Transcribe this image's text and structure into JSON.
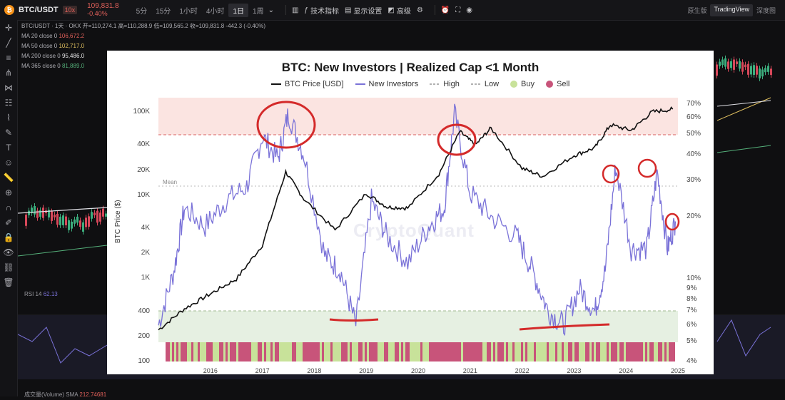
{
  "toolbar": {
    "symbol": "BTC/USDT",
    "leverage": "10x",
    "price": "109,831.8",
    "change": "-0.40%",
    "timeframes": [
      "5分",
      "15分",
      "1小时",
      "4小时",
      "1日",
      "1周"
    ],
    "active_timeframe": "1日",
    "indicators_label": "技术指标",
    "display_label": "显示设置",
    "advanced_label": "高级",
    "views": [
      "原生版",
      "TradingView",
      "深度图"
    ],
    "active_view": "TradingView"
  },
  "legend": {
    "header": "BTC/USDT · 1天 · OKX",
    "ohlc": "开=110,274.1 高=110,288.9 低=109,565.2 收=109,831.8 -442.3 (-0.40%)",
    "ma20_label": "MA 20 close 0",
    "ma20_val": "106,672.2",
    "ma50_label": "MA 50 close 0",
    "ma50_val": "102,717.0",
    "ma200_label": "MA 200 close 0",
    "ma200_val": "95,486.0",
    "ma365_label": "MA 365 close 0",
    "ma365_val": "81,889.0"
  },
  "rsi": {
    "label": "RSI 14",
    "value": "62.13"
  },
  "volume": {
    "label": "成交量(Volume) SMA",
    "value": "212.74681"
  },
  "panel": {
    "title": "BTC: New Investors | Realized Cap <1 Month",
    "legend": [
      {
        "label": "BTC Price [USD]",
        "kind": "line",
        "color": "#111111"
      },
      {
        "label": "New Investors",
        "kind": "line",
        "color": "#7a72d8"
      },
      {
        "label": "High",
        "kind": "dash",
        "color": "#999999"
      },
      {
        "label": "Low",
        "kind": "dash",
        "color": "#999999"
      },
      {
        "label": "Buy",
        "kind": "dot",
        "color": "#c8e29a"
      },
      {
        "label": "Sell",
        "kind": "dot",
        "color": "#c8547a"
      }
    ],
    "ylabel": "BTC Price ($)",
    "mean_label": "Mean",
    "watermark": "CryptoQuant"
  },
  "chart_data": {
    "type": "line",
    "title": "BTC: New Investors | Realized Cap <1 Month",
    "ylabel": "BTC Price ($)",
    "y_left_ticks": [
      "100K",
      "40K",
      "20K",
      "10K",
      "4K",
      "2K",
      "1K",
      "400",
      "200",
      "100"
    ],
    "y_right_ticks": [
      "70%",
      "60%",
      "50%",
      "40%",
      "30%",
      "20%",
      "10%",
      "9%",
      "8%",
      "7%",
      "6%",
      "5%",
      "4%"
    ],
    "x_ticks": [
      "2016",
      "2017",
      "2018",
      "2019",
      "2020",
      "2021",
      "2022",
      "2023",
      "2024",
      "2025"
    ],
    "y_scale": "log",
    "series": [
      {
        "name": "BTC Price [USD]",
        "x": [
          2015.5,
          2016.0,
          2016.5,
          2017.0,
          2017.5,
          2017.95,
          2018.3,
          2018.9,
          2019.5,
          2019.9,
          2020.3,
          2020.9,
          2021.3,
          2021.6,
          2021.9,
          2022.5,
          2022.9,
          2023.5,
          2023.9,
          2024.2,
          2024.6,
          2025.0,
          2025.4
        ],
        "y": [
          240,
          430,
          650,
          980,
          2500,
          19000,
          9000,
          3800,
          10500,
          7200,
          7000,
          18000,
          58000,
          40000,
          64000,
          21000,
          16800,
          30000,
          37000,
          70000,
          60000,
          100000,
          108000
        ]
      },
      {
        "name": "New Investors",
        "x": [
          2015.5,
          2015.8,
          2016.0,
          2016.4,
          2016.8,
          2017.2,
          2017.5,
          2017.8,
          2018.0,
          2018.3,
          2018.7,
          2019.0,
          2019.3,
          2019.6,
          2019.9,
          2020.3,
          2020.7,
          2021.0,
          2021.2,
          2021.5,
          2021.9,
          2022.4,
          2022.7,
          2023.0,
          2023.3,
          2023.6,
          2023.9,
          2024.1,
          2024.3,
          2024.6,
          2024.9,
          2025.1,
          2025.3,
          2025.45
        ],
        "y": [
          6,
          11,
          22,
          18,
          24,
          28,
          49,
          38,
          63,
          40,
          13,
          11,
          6,
          24,
          16,
          12,
          18,
          22,
          63,
          26,
          20,
          16,
          11,
          7,
          6,
          9,
          7,
          11,
          35,
          14,
          14,
          33,
          14,
          19
        ]
      }
    ],
    "y_right_unit": "%",
    "high_threshold": 50,
    "low_threshold": 7,
    "mean": 28,
    "annotations": {
      "red_circles": 6,
      "red_underlines": 2
    }
  }
}
